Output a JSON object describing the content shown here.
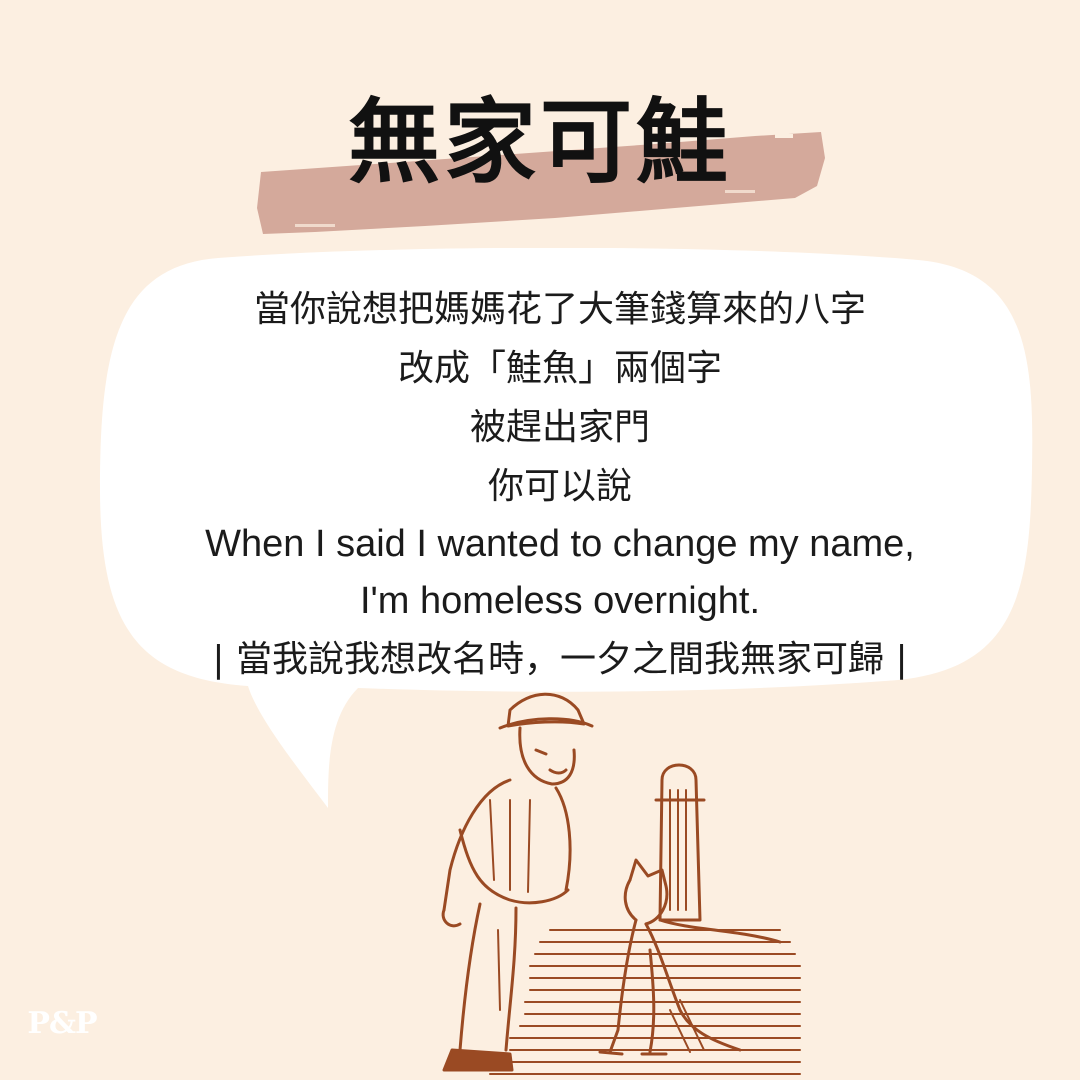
{
  "title": "無家可鮭",
  "body_lines": [
    "當你說想把媽媽花了大筆錢算來的八字",
    "改成「鮭魚」兩個字",
    "被趕出家門",
    "你可以說",
    "When I said I wanted to change my name,",
    "I'm homeless overnight.",
    "| 當我說我想改名時，一夕之間我無家可歸 |"
  ],
  "logo": {
    "text": "P&P"
  },
  "colors": {
    "background": "#fcefe1",
    "brush": "#d4a99b",
    "bubble": "#ffffff",
    "ink": "#9a4a23"
  },
  "illustration": {
    "name": "man-and-dog-engraving"
  }
}
